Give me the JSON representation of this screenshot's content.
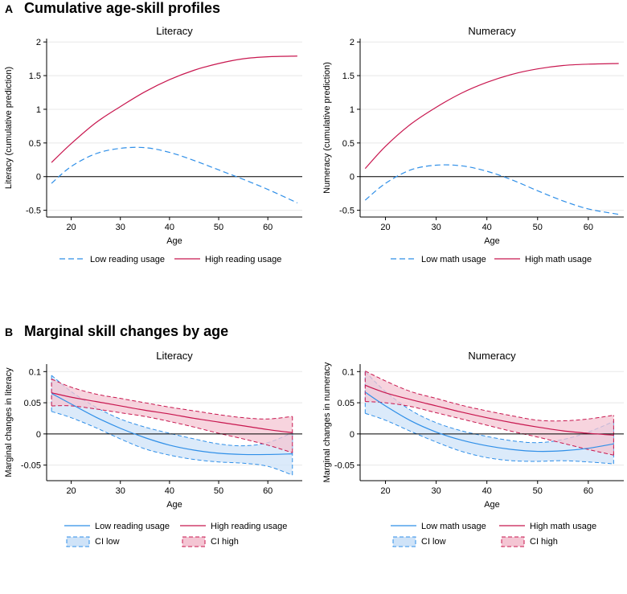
{
  "panels": {
    "A": {
      "letter": "A",
      "title": "Cumulative age-skill profiles"
    },
    "B": {
      "letter": "B",
      "title": "Marginal skill changes by age"
    }
  },
  "colors": {
    "low": "#2f8fe8",
    "high": "#c8174f",
    "ci_low_fill": "#cfe3f8",
    "ci_high_fill": "#f4c5d3",
    "zero_line": "#000000",
    "grid": "#e8e8e8"
  },
  "chart_data": [
    {
      "id": "A-literacy",
      "type": "line",
      "title": "Literacy",
      "xlabel": "Age",
      "ylabel": "Literacy (cumulative prediction)",
      "xlim": [
        15,
        67
      ],
      "ylim": [
        -0.6,
        2.05
      ],
      "xticks": [
        20,
        30,
        40,
        50,
        60
      ],
      "yticks": [
        -0.5,
        0,
        0.5,
        1,
        1.5,
        2
      ],
      "ytick_labels": [
        "-0.5",
        "0",
        "0.5",
        "1",
        "1.5",
        "2"
      ],
      "x": [
        16,
        20,
        25,
        30,
        35,
        40,
        45,
        50,
        55,
        60,
        66
      ],
      "series": [
        {
          "name": "Low reading usage",
          "style": "dash",
          "values": [
            -0.1,
            0.15,
            0.34,
            0.42,
            0.43,
            0.36,
            0.24,
            0.1,
            -0.04,
            -0.19,
            -0.39
          ]
        },
        {
          "name": "High reading usage",
          "style": "solid",
          "values": [
            0.21,
            0.49,
            0.8,
            1.04,
            1.26,
            1.44,
            1.58,
            1.68,
            1.75,
            1.78,
            1.79
          ]
        }
      ],
      "legend": [
        "Low reading usage",
        "High reading usage"
      ]
    },
    {
      "id": "A-numeracy",
      "type": "line",
      "title": "Numeracy",
      "xlabel": "Age",
      "ylabel": "Numeracy (cumulative prediction)",
      "xlim": [
        15,
        67
      ],
      "ylim": [
        -0.6,
        2.05
      ],
      "xticks": [
        20,
        30,
        40,
        50,
        60
      ],
      "yticks": [
        -0.5,
        0,
        0.5,
        1,
        1.5,
        2
      ],
      "ytick_labels": [
        "-0.5",
        "0",
        "0.5",
        "1",
        "1.5",
        "2"
      ],
      "x": [
        16,
        20,
        25,
        30,
        35,
        40,
        45,
        50,
        55,
        60,
        66
      ],
      "series": [
        {
          "name": "Low math usage",
          "style": "dash",
          "values": [
            -0.35,
            -0.1,
            0.1,
            0.17,
            0.16,
            0.08,
            -0.05,
            -0.21,
            -0.36,
            -0.48,
            -0.56
          ]
        },
        {
          "name": "High math usage",
          "style": "solid",
          "values": [
            0.12,
            0.45,
            0.78,
            1.03,
            1.24,
            1.4,
            1.52,
            1.6,
            1.65,
            1.67,
            1.68
          ]
        }
      ],
      "legend": [
        "Low math usage",
        "High math usage"
      ]
    },
    {
      "id": "B-literacy",
      "type": "area",
      "title": "Literacy",
      "xlabel": "Age",
      "ylabel": "Marginal changes in literacy",
      "xlim": [
        15,
        67
      ],
      "ylim": [
        -0.075,
        0.112
      ],
      "xticks": [
        20,
        30,
        40,
        50,
        60
      ],
      "yticks": [
        -0.05,
        0,
        0.05,
        0.1
      ],
      "ytick_labels": [
        "-0.05",
        "0",
        "0.05",
        "0.1"
      ],
      "x": [
        16,
        20,
        25,
        30,
        35,
        40,
        45,
        50,
        55,
        60,
        65
      ],
      "series": [
        {
          "name": "Low reading usage",
          "values": [
            0.065,
            0.048,
            0.027,
            0.009,
            -0.006,
            -0.018,
            -0.026,
            -0.031,
            -0.033,
            -0.033,
            -0.032
          ]
        },
        {
          "name": "High reading usage",
          "values": [
            0.066,
            0.059,
            0.052,
            0.045,
            0.038,
            0.032,
            0.025,
            0.019,
            0.013,
            0.007,
            0.002
          ]
        },
        {
          "name": "CI low (lower)",
          "values": [
            0.036,
            0.026,
            0.01,
            -0.008,
            -0.024,
            -0.034,
            -0.041,
            -0.045,
            -0.047,
            -0.052,
            -0.066
          ]
        },
        {
          "name": "CI low (upper)",
          "values": [
            0.094,
            0.068,
            0.043,
            0.024,
            0.011,
            0.001,
            -0.008,
            -0.016,
            -0.019,
            -0.014,
            0.002
          ]
        },
        {
          "name": "CI high (lower)",
          "values": [
            0.045,
            0.045,
            0.04,
            0.034,
            0.028,
            0.02,
            0.011,
            0.001,
            -0.008,
            -0.018,
            -0.03
          ]
        },
        {
          "name": "CI high (upper)",
          "values": [
            0.088,
            0.075,
            0.064,
            0.057,
            0.05,
            0.043,
            0.037,
            0.031,
            0.026,
            0.024,
            0.028
          ]
        }
      ],
      "legend": [
        "Low reading usage",
        "High reading usage",
        "CI low",
        "CI high"
      ]
    },
    {
      "id": "B-numeracy",
      "type": "area",
      "title": "Numeracy",
      "xlabel": "Age",
      "ylabel": "Marginal changes in numeracy",
      "xlim": [
        15,
        67
      ],
      "ylim": [
        -0.075,
        0.112
      ],
      "xticks": [
        20,
        30,
        40,
        50,
        60
      ],
      "yticks": [
        -0.05,
        0,
        0.05,
        0.1
      ],
      "ytick_labels": [
        "-0.05",
        "0",
        "0.05",
        "0.1"
      ],
      "x": [
        16,
        20,
        25,
        30,
        35,
        40,
        45,
        50,
        55,
        60,
        65
      ],
      "series": [
        {
          "name": "Low math usage",
          "values": [
            0.067,
            0.045,
            0.021,
            0.003,
            -0.01,
            -0.019,
            -0.025,
            -0.028,
            -0.027,
            -0.023,
            -0.016
          ]
        },
        {
          "name": "High math usage",
          "values": [
            0.078,
            0.066,
            0.055,
            0.045,
            0.035,
            0.026,
            0.018,
            0.011,
            0.005,
            0.001,
            -0.002
          ]
        },
        {
          "name": "CI low (lower)",
          "values": [
            0.033,
            0.022,
            0.004,
            -0.013,
            -0.028,
            -0.038,
            -0.043,
            -0.044,
            -0.043,
            -0.045,
            -0.048
          ]
        },
        {
          "name": "CI low (upper)",
          "values": [
            0.1,
            0.068,
            0.038,
            0.018,
            0.005,
            -0.004,
            -0.011,
            -0.014,
            -0.009,
            0.003,
            0.02
          ]
        },
        {
          "name": "CI high (lower)",
          "values": [
            0.052,
            0.05,
            0.044,
            0.034,
            0.024,
            0.014,
            0.004,
            -0.005,
            -0.015,
            -0.025,
            -0.034
          ]
        },
        {
          "name": "CI high (upper)",
          "values": [
            0.101,
            0.085,
            0.068,
            0.057,
            0.046,
            0.037,
            0.029,
            0.022,
            0.021,
            0.024,
            0.03
          ]
        }
      ],
      "legend": [
        "Low math usage",
        "High math usage",
        "CI low",
        "CI high"
      ]
    }
  ]
}
